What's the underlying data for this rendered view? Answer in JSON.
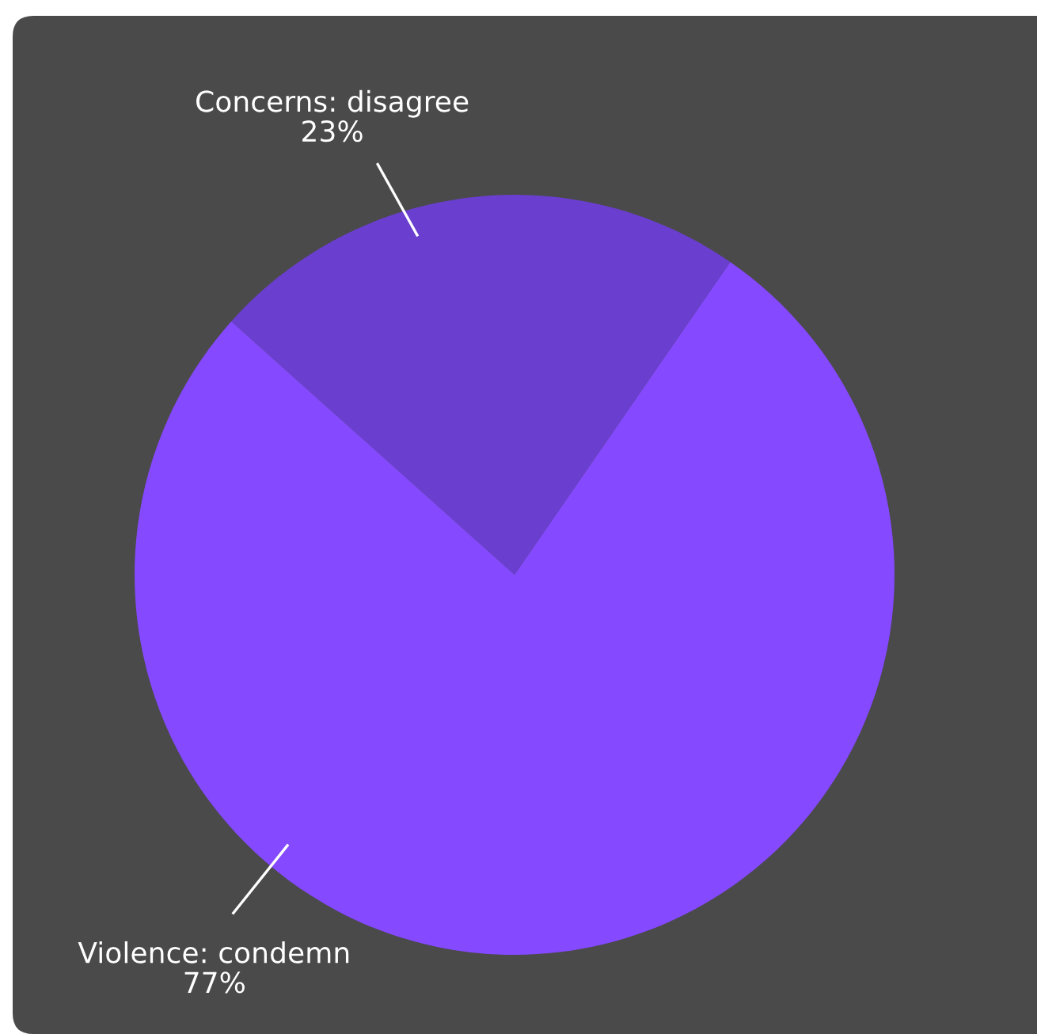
{
  "chart_data": {
    "type": "pie",
    "categories": [
      "Concerns: disagree",
      "Violence: condemn"
    ],
    "values": [
      23,
      77
    ],
    "colors": [
      "#6a3fcf",
      "#8549ff"
    ],
    "value_labels": [
      "23%",
      "77%"
    ],
    "legend": false
  }
}
